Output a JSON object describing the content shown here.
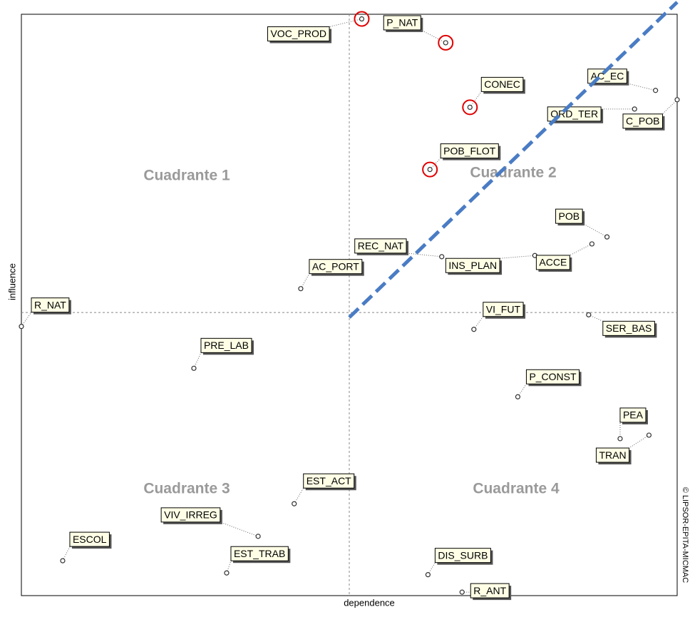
{
  "chart_data": {
    "type": "scatter",
    "x_label": "dependence",
    "y_label": "influence",
    "copyright": "© LIPSOR-EPITA-MICMAC",
    "quadrants": [
      "Cuadrante 1",
      "Cuadrante 2",
      "Cuadrante 3",
      "Cuadrante 4"
    ],
    "xlim": [
      0,
      100
    ],
    "ylim": [
      0,
      100
    ],
    "x_ref": 50,
    "y_ref": 48.7,
    "circle_color": "#e00000",
    "points": [
      {
        "label": "VOC_PROD",
        "x": 51.9,
        "y": 99.2,
        "circled": true
      },
      {
        "label": "P_NAT",
        "x": 64.7,
        "y": 95.1,
        "circled": true
      },
      {
        "label": "CONEC",
        "x": 68.4,
        "y": 84.0,
        "circled": true
      },
      {
        "label": "AC_EC",
        "x": 96.7,
        "y": 86.9,
        "circled": false
      },
      {
        "label": "ORD_TER",
        "x": 93.5,
        "y": 83.7,
        "circled": false
      },
      {
        "label": "C_POB",
        "x": 100,
        "y": 85.3,
        "circled": false
      },
      {
        "label": "POB_FLOT",
        "x": 62.3,
        "y": 73.3,
        "circled": true
      },
      {
        "label": "POB",
        "x": 89.3,
        "y": 61.7,
        "circled": false
      },
      {
        "label": "REC_NAT",
        "x": 64.1,
        "y": 58.3,
        "circled": false
      },
      {
        "label": "INS_PLAN",
        "x": 78.3,
        "y": 58.5,
        "circled": false
      },
      {
        "label": "ACCE",
        "x": 87.0,
        "y": 60.5,
        "circled": false
      },
      {
        "label": "AC_PORT",
        "x": 42.6,
        "y": 52.8,
        "circled": false
      },
      {
        "label": "R_NAT",
        "x": 0,
        "y": 46.3,
        "circled": false
      },
      {
        "label": "VI_FUT",
        "x": 69.0,
        "y": 45.8,
        "circled": false
      },
      {
        "label": "SER_BAS",
        "x": 86.5,
        "y": 48.3,
        "circled": false
      },
      {
        "label": "PRE_LAB",
        "x": 26.3,
        "y": 39.1,
        "circled": false
      },
      {
        "label": "P_CONST",
        "x": 75.7,
        "y": 34.2,
        "circled": false
      },
      {
        "label": "PEA",
        "x": 91.3,
        "y": 27.0,
        "circled": false
      },
      {
        "label": "TRAN",
        "x": 95.7,
        "y": 27.6,
        "circled": false
      },
      {
        "label": "EST_ACT",
        "x": 41.6,
        "y": 15.8,
        "circled": false
      },
      {
        "label": "VIV_IRREG",
        "x": 36.1,
        "y": 10.2,
        "circled": false
      },
      {
        "label": "ESCOL",
        "x": 6.3,
        "y": 6.0,
        "circled": false
      },
      {
        "label": "EST_TRAB",
        "x": 31.3,
        "y": 3.9,
        "circled": false
      },
      {
        "label": "DIS_SURB",
        "x": 62.0,
        "y": 3.6,
        "circled": false
      },
      {
        "label": "R_ANT",
        "x": 67.2,
        "y": 0.6,
        "circled": false
      }
    ]
  }
}
